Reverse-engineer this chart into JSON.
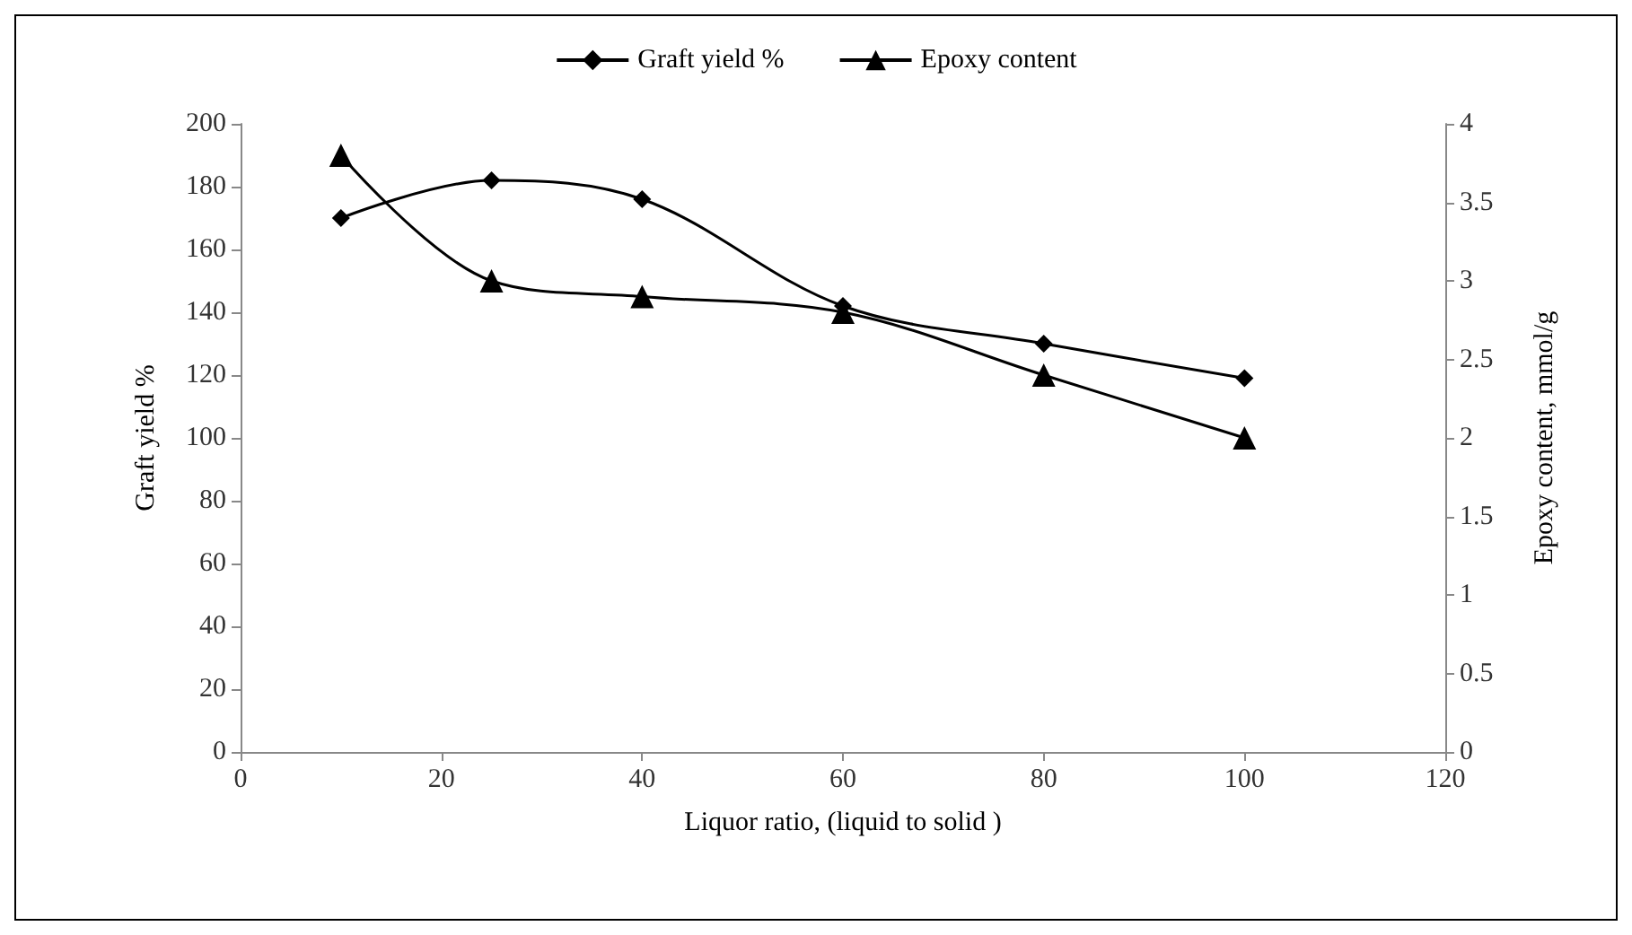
{
  "chart_data": {
    "type": "line",
    "xlabel": "Liquor ratio, (liquid to solid )",
    "ylabel": "Graft yield %",
    "y2label": "Epoxy content, mmol/g",
    "x": [
      10,
      25,
      40,
      60,
      80,
      100
    ],
    "series": [
      {
        "name": "Graft yield %",
        "color": "#000000",
        "marker": "diamond",
        "values": [
          170,
          182,
          176,
          142,
          130,
          119
        ]
      },
      {
        "name": "Epoxy content",
        "color": "#000000",
        "marker": "triangle",
        "axis": "y2",
        "values": [
          3.8,
          3.0,
          2.9,
          2.8,
          2.4,
          2.0
        ]
      }
    ],
    "xlim": [
      0,
      120
    ],
    "xticks": [
      0,
      20,
      40,
      60,
      80,
      100,
      120
    ],
    "ylim": [
      0,
      200
    ],
    "yticks": [
      0,
      20,
      40,
      60,
      80,
      100,
      120,
      140,
      160,
      180,
      200
    ],
    "y2lim": [
      0,
      4
    ],
    "y2ticks": [
      0,
      0.5,
      1,
      1.5,
      2,
      2.5,
      3,
      3.5,
      4
    ],
    "grid": false,
    "legend": "top"
  }
}
